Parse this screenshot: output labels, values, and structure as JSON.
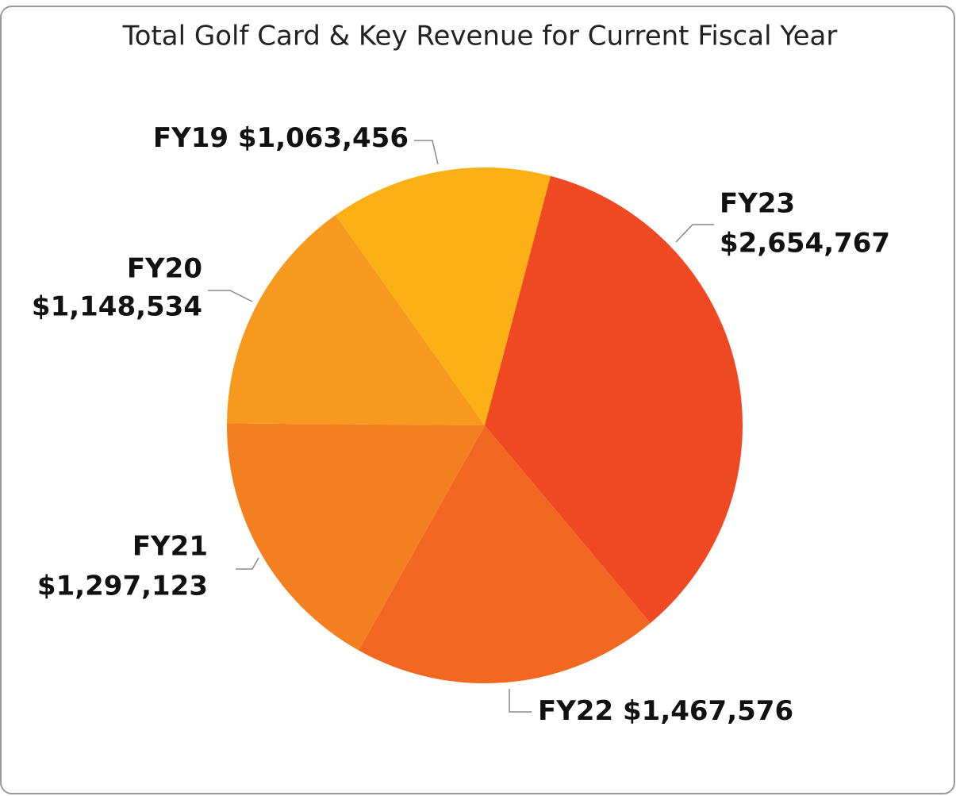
{
  "chart_data": {
    "type": "pie",
    "title": "Total Golf Card & Key Revenue for Current Fiscal Year",
    "categories": [
      "FY19",
      "FY20",
      "FY21",
      "FY22",
      "FY23"
    ],
    "values": [
      1063456,
      1148534,
      1297123,
      1467576,
      2654767
    ],
    "value_labels": [
      "$1,063,456",
      "$1,148,534",
      "$1,297,123",
      "$1,467,576",
      "$2,654,767"
    ],
    "colors": [
      "#fbb116",
      "#f7991f",
      "#f47f20",
      "#f26722",
      "#ef4923"
    ]
  }
}
